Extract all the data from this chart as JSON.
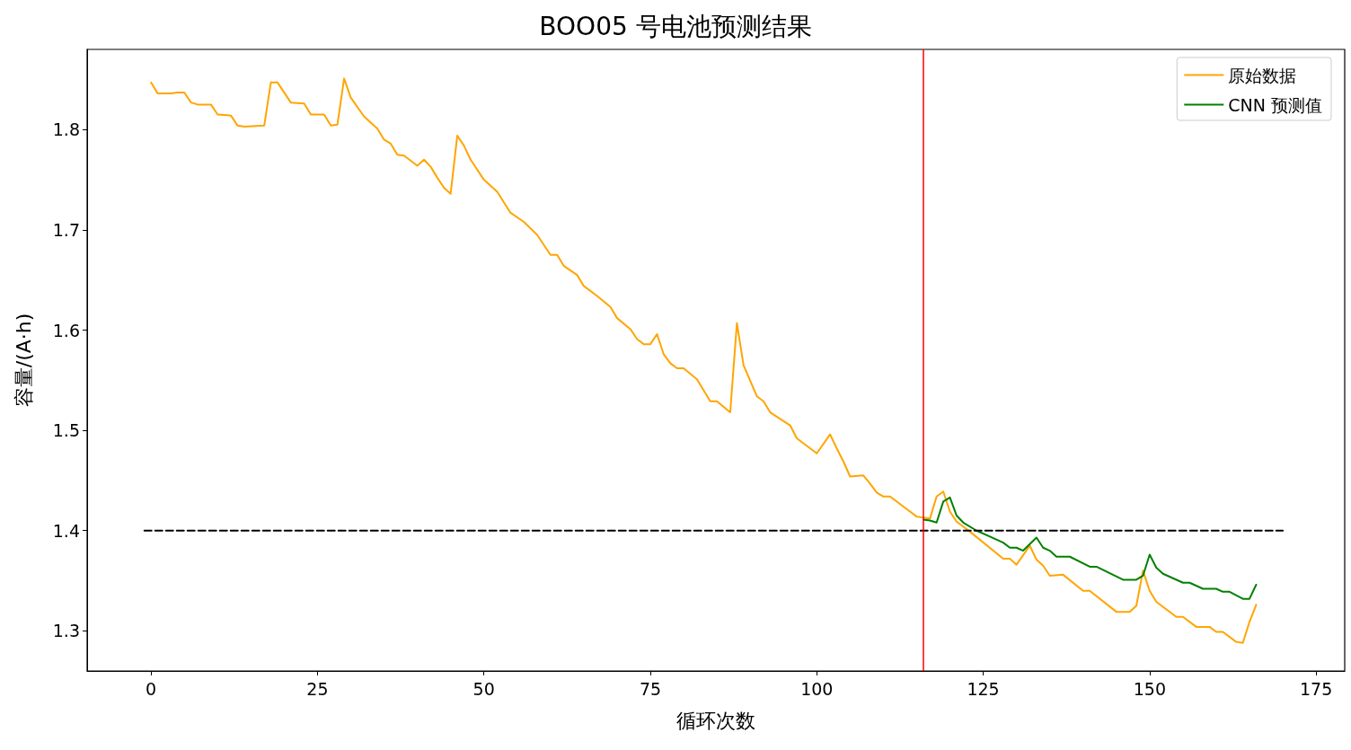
{
  "chart_data": {
    "type": "line",
    "title": "BOO05 号电池预测结果",
    "xlabel": "循环次数",
    "ylabel": "容量/(A·h)",
    "xlim": [
      -9.6,
      179.3
    ],
    "xticks": [
      0,
      25,
      50,
      75,
      100,
      125,
      150,
      175
    ],
    "ylim": [
      1.26,
      1.88
    ],
    "yticks": [
      1.3,
      1.4,
      1.5,
      1.6,
      1.7,
      1.8
    ],
    "grid": false,
    "legend": "top right",
    "ref_lines": [
      {
        "axis": "x",
        "value": 116,
        "color": "#ff0000",
        "line_style": "solid"
      }
    ],
    "series": [
      {
        "name": "原始数据",
        "color": "#ffa500",
        "line_style": "solid",
        "x": [
          0,
          1,
          3,
          4,
          5,
          6,
          7,
          9,
          10,
          12,
          13,
          14,
          17,
          18,
          19,
          21,
          23,
          24,
          26,
          27,
          28,
          29,
          30,
          32,
          34,
          35,
          36,
          37,
          38,
          40,
          41,
          42,
          43,
          44,
          45,
          46,
          47,
          48,
          50,
          52,
          54,
          56,
          58,
          60,
          61,
          62,
          64,
          65,
          67,
          69,
          70,
          72,
          73,
          74,
          75,
          76,
          77,
          78,
          79,
          80,
          82,
          84,
          85,
          87,
          88,
          89,
          91,
          92,
          93,
          96,
          97,
          100,
          102,
          103,
          104,
          105,
          107,
          108,
          109,
          110,
          111,
          115,
          116,
          117,
          118,
          119,
          120,
          121,
          122,
          123,
          128,
          129,
          130,
          132,
          133,
          134,
          135,
          137,
          140,
          141,
          145,
          147,
          148,
          149,
          150,
          151,
          154,
          155,
          157,
          159,
          160,
          161,
          163,
          164,
          165,
          166
        ],
        "values": [
          1.847,
          1.836,
          1.836,
          1.837,
          1.837,
          1.827,
          1.825,
          1.825,
          1.815,
          1.814,
          1.804,
          1.803,
          1.804,
          1.847,
          1.847,
          1.827,
          1.826,
          1.815,
          1.815,
          1.804,
          1.805,
          1.851,
          1.832,
          1.813,
          1.801,
          1.79,
          1.786,
          1.775,
          1.774,
          1.764,
          1.77,
          1.763,
          1.752,
          1.742,
          1.736,
          1.794,
          1.784,
          1.77,
          1.75,
          1.738,
          1.717,
          1.708,
          1.695,
          1.675,
          1.675,
          1.664,
          1.655,
          1.644,
          1.634,
          1.623,
          1.612,
          1.601,
          1.591,
          1.586,
          1.586,
          1.596,
          1.576,
          1.567,
          1.562,
          1.562,
          1.551,
          1.529,
          1.529,
          1.518,
          1.607,
          1.565,
          1.534,
          1.529,
          1.518,
          1.505,
          1.492,
          1.477,
          1.496,
          1.482,
          1.469,
          1.454,
          1.455,
          1.447,
          1.438,
          1.434,
          1.434,
          1.414,
          1.413,
          1.412,
          1.434,
          1.439,
          1.419,
          1.409,
          1.404,
          1.399,
          1.372,
          1.372,
          1.366,
          1.385,
          1.371,
          1.365,
          1.355,
          1.356,
          1.34,
          1.34,
          1.319,
          1.319,
          1.325,
          1.36,
          1.34,
          1.329,
          1.314,
          1.314,
          1.304,
          1.304,
          1.299,
          1.299,
          1.289,
          1.288,
          1.309,
          1.326
        ]
      },
      {
        "name": "CNN 预测值",
        "color": "#008000",
        "line_style": "solid",
        "x": [
          116,
          117,
          118,
          119,
          120,
          121,
          122,
          124,
          126,
          128,
          129,
          130,
          131,
          133,
          134,
          135,
          136,
          138,
          141,
          142,
          146,
          148,
          149,
          150,
          151,
          152,
          155,
          156,
          158,
          160,
          161,
          162,
          164,
          165,
          166
        ],
        "values": [
          1.411,
          1.41,
          1.408,
          1.429,
          1.433,
          1.415,
          1.408,
          1.4,
          1.394,
          1.388,
          1.383,
          1.383,
          1.38,
          1.393,
          1.383,
          1.38,
          1.374,
          1.374,
          1.364,
          1.364,
          1.351,
          1.351,
          1.355,
          1.376,
          1.363,
          1.357,
          1.348,
          1.348,
          1.342,
          1.342,
          1.339,
          1.339,
          1.332,
          1.332,
          1.346
        ]
      },
      {
        "color": "#000000",
        "line_style": "dashed",
        "x": [
          -1,
          170
        ],
        "values": [
          1.4,
          1.4
        ]
      }
    ]
  }
}
